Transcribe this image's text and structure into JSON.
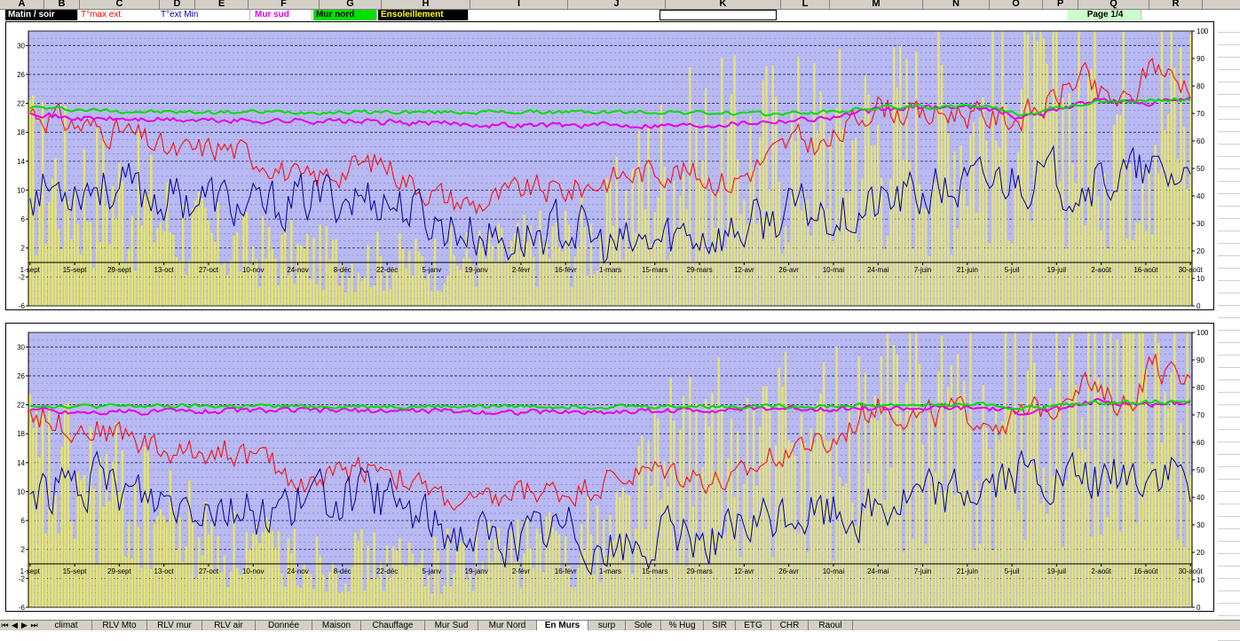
{
  "column_headers": [
    "A",
    "B",
    "C",
    "D",
    "E",
    "F",
    "G",
    "H",
    "I",
    "J",
    "K",
    "L",
    "M",
    "N",
    "O",
    "P",
    "Q",
    "R"
  ],
  "legend": [
    {
      "label": "Matin / soir",
      "color": "#ffffff",
      "bg": "#000000"
    },
    {
      "label": "T°max ext",
      "color": "#ff0000",
      "bg": "#ffffff"
    },
    {
      "label": "T°ext Min",
      "color": "#0000aa",
      "bg": "#ffffff"
    },
    {
      "label": "Mur sud",
      "color": "#e600e6",
      "bg": "#ffffff"
    },
    {
      "label": "Mur nord",
      "color": "#000000",
      "bg": "#00e000"
    },
    {
      "label": "Ensoleillement",
      "color": "#ffff00",
      "bg": "#000000"
    }
  ],
  "page_label": "Page  1/4",
  "sheet_tabs": [
    "climat",
    "RLV Mto",
    "RLV mur",
    "RLV air",
    "Donnée",
    "Maison",
    "Chauffage",
    "Mur Sud",
    "Mur Nord",
    "En Murs",
    "surp",
    "Sole",
    "% Hug",
    "SIR",
    "ETG",
    "CHR",
    "Raoul"
  ],
  "active_tab": "En Murs",
  "colors": {
    "plot_bg": "#b8b8f2",
    "sun": "#e4e46e",
    "tmax": "#ff0000",
    "tmin": "#000099",
    "mur_sud": "#e600e6",
    "mur_nord": "#00dd00"
  },
  "chart_data": [
    {
      "type": "line",
      "n_days": 365,
      "x_tick_labels": [
        "1-sept",
        "15-sept",
        "29-sept",
        "13-oct",
        "27-oct",
        "10-nov",
        "24-nov",
        "8-déc",
        "22-déc",
        "5-janv",
        "19-janv",
        "2-févr",
        "16-févr",
        "1-mars",
        "15-mars",
        "29-mars",
        "12-avr",
        "26-avr",
        "10-mai",
        "24-mai",
        "7-juin",
        "21-juin",
        "5-juil",
        "19-juil",
        "2-août",
        "16-août",
        "30-août"
      ],
      "y_left": {
        "min": -6,
        "max": 32,
        "ticks": [
          -6,
          -2,
          2,
          6,
          10,
          14,
          18,
          22,
          26,
          30
        ]
      },
      "y_right": {
        "min": 0,
        "max": 100,
        "ticks": [
          0,
          10,
          20,
          30,
          40,
          50,
          60,
          70,
          80,
          90,
          100
        ]
      },
      "grid": true,
      "series": [
        {
          "key": "sun",
          "axis": "right",
          "style": "bars",
          "keypoints": [
            [
              0,
              55
            ],
            [
              30,
              45
            ],
            [
              60,
              25
            ],
            [
              90,
              20
            ],
            [
              120,
              18
            ],
            [
              150,
              22
            ],
            [
              180,
              30
            ],
            [
              195,
              55
            ],
            [
              210,
              60
            ],
            [
              240,
              65
            ],
            [
              270,
              70
            ],
            [
              300,
              75
            ],
            [
              330,
              80
            ],
            [
              364,
              85
            ]
          ]
        },
        {
          "key": "tmax",
          "axis": "left",
          "style": "line",
          "keypoints": [
            [
              0,
              21
            ],
            [
              7,
              20
            ],
            [
              14,
              19
            ],
            [
              30,
              18
            ],
            [
              45,
              15
            ],
            [
              60,
              16
            ],
            [
              75,
              14
            ],
            [
              85,
              11
            ],
            [
              100,
              13
            ],
            [
              110,
              14
            ],
            [
              120,
              11
            ],
            [
              130,
              9
            ],
            [
              140,
              8
            ],
            [
              155,
              10
            ],
            [
              170,
              10
            ],
            [
              185,
              12
            ],
            [
              200,
              13
            ],
            [
              210,
              12
            ],
            [
              220,
              11
            ],
            [
              230,
              14
            ],
            [
              240,
              17
            ],
            [
              250,
              16
            ],
            [
              265,
              22
            ],
            [
              280,
              20
            ],
            [
              290,
              21
            ],
            [
              300,
              20
            ],
            [
              310,
              20
            ],
            [
              320,
              22
            ],
            [
              330,
              26
            ],
            [
              335,
              23
            ],
            [
              345,
              22
            ],
            [
              352,
              28
            ],
            [
              360,
              25
            ],
            [
              364,
              25
            ]
          ]
        },
        {
          "key": "tmin",
          "axis": "left",
          "style": "line",
          "keypoints": [
            [
              0,
              10
            ],
            [
              20,
              11
            ],
            [
              40,
              9
            ],
            [
              55,
              9
            ],
            [
              70,
              7
            ],
            [
              90,
              9
            ],
            [
              110,
              9
            ],
            [
              130,
              5
            ],
            [
              150,
              3
            ],
            [
              170,
              5
            ],
            [
              180,
              2
            ],
            [
              190,
              2
            ],
            [
              205,
              4
            ],
            [
              220,
              4
            ],
            [
              240,
              7
            ],
            [
              260,
              7
            ],
            [
              275,
              9
            ],
            [
              290,
              10
            ],
            [
              310,
              12
            ],
            [
              330,
              11
            ],
            [
              345,
              12
            ],
            [
              364,
              12
            ]
          ]
        },
        {
          "key": "mur_sud",
          "axis": "left",
          "style": "line",
          "keypoints": [
            [
              0,
              21
            ],
            [
              10,
              20
            ],
            [
              30,
              19.8
            ],
            [
              60,
              19.6
            ],
            [
              90,
              19.6
            ],
            [
              120,
              19.3
            ],
            [
              150,
              19
            ],
            [
              180,
              19
            ],
            [
              210,
              19
            ],
            [
              230,
              19.5
            ],
            [
              250,
              20
            ],
            [
              265,
              21
            ],
            [
              280,
              21.5
            ],
            [
              300,
              21.5
            ],
            [
              310,
              20
            ],
            [
              320,
              21
            ],
            [
              335,
              22.5
            ],
            [
              350,
              22
            ],
            [
              364,
              22.5
            ]
          ]
        },
        {
          "key": "mur_nord",
          "axis": "left",
          "style": "line",
          "keypoints": [
            [
              0,
              21.5
            ],
            [
              10,
              21.2
            ],
            [
              40,
              20.8
            ],
            [
              80,
              20.8
            ],
            [
              120,
              20.8
            ],
            [
              160,
              20.8
            ],
            [
              200,
              20.8
            ],
            [
              230,
              20.5
            ],
            [
              250,
              20.8
            ],
            [
              270,
              21.5
            ],
            [
              300,
              21.5
            ],
            [
              310,
              20.5
            ],
            [
              320,
              21.2
            ],
            [
              335,
              22.2
            ],
            [
              364,
              22.5
            ]
          ]
        }
      ]
    },
    {
      "type": "line",
      "n_days": 365,
      "x_tick_labels": [
        "1-sept",
        "15-sept",
        "29-sept",
        "13-oct",
        "27-oct",
        "10-nov",
        "24-nov",
        "8-déc",
        "22-déc",
        "5-janv",
        "19-janv",
        "2-févr",
        "16-févr",
        "1-mars",
        "15-mars",
        "29-mars",
        "12-avr",
        "26-avr",
        "10-mai",
        "24-mai",
        "7-juin",
        "21-juin",
        "5-juil",
        "19-juil",
        "2-août",
        "16-août",
        "30-août"
      ],
      "y_left": {
        "min": -6,
        "max": 32,
        "ticks": [
          -6,
          -2,
          2,
          6,
          10,
          14,
          18,
          22,
          26,
          30
        ]
      },
      "y_right": {
        "min": 0,
        "max": 100,
        "ticks": [
          0,
          10,
          20,
          30,
          40,
          50,
          60,
          70,
          80,
          90,
          100
        ]
      },
      "grid": true,
      "series": [
        {
          "key": "sun",
          "axis": "right",
          "style": "bars",
          "keypoints": [
            [
              0,
              55
            ],
            [
              30,
              45
            ],
            [
              60,
              25
            ],
            [
              90,
              20
            ],
            [
              120,
              18
            ],
            [
              150,
              22
            ],
            [
              180,
              30
            ],
            [
              195,
              55
            ],
            [
              210,
              60
            ],
            [
              240,
              65
            ],
            [
              270,
              70
            ],
            [
              300,
              75
            ],
            [
              330,
              80
            ],
            [
              364,
              85
            ]
          ]
        },
        {
          "key": "tmax",
          "axis": "left",
          "style": "line",
          "keypoints": [
            [
              0,
              21
            ],
            [
              7,
              20
            ],
            [
              14,
              19
            ],
            [
              30,
              18
            ],
            [
              45,
              15
            ],
            [
              60,
              16
            ],
            [
              75,
              14
            ],
            [
              85,
              11
            ],
            [
              100,
              13
            ],
            [
              110,
              14
            ],
            [
              120,
              11
            ],
            [
              130,
              9
            ],
            [
              140,
              8
            ],
            [
              155,
              10
            ],
            [
              170,
              10
            ],
            [
              185,
              12
            ],
            [
              200,
              13
            ],
            [
              210,
              12
            ],
            [
              220,
              11
            ],
            [
              230,
              14
            ],
            [
              240,
              17
            ],
            [
              250,
              16
            ],
            [
              265,
              22
            ],
            [
              280,
              20
            ],
            [
              290,
              21
            ],
            [
              300,
              20
            ],
            [
              310,
              20
            ],
            [
              320,
              22
            ],
            [
              330,
              26
            ],
            [
              335,
              23
            ],
            [
              345,
              22
            ],
            [
              352,
              28
            ],
            [
              360,
              25
            ],
            [
              364,
              25
            ]
          ]
        },
        {
          "key": "tmin",
          "axis": "left",
          "style": "line",
          "keypoints": [
            [
              0,
              10
            ],
            [
              20,
              11
            ],
            [
              40,
              9
            ],
            [
              55,
              9
            ],
            [
              70,
              7
            ],
            [
              90,
              9
            ],
            [
              110,
              9
            ],
            [
              130,
              5
            ],
            [
              150,
              3
            ],
            [
              170,
              5
            ],
            [
              180,
              2
            ],
            [
              190,
              2
            ],
            [
              205,
              4
            ],
            [
              220,
              4
            ],
            [
              240,
              7
            ],
            [
              260,
              7
            ],
            [
              275,
              9
            ],
            [
              290,
              10
            ],
            [
              310,
              12
            ],
            [
              330,
              11
            ],
            [
              345,
              12
            ],
            [
              364,
              12
            ]
          ]
        },
        {
          "key": "mur_sud",
          "axis": "left",
          "style": "line",
          "keypoints": [
            [
              0,
              21.5
            ],
            [
              10,
              21
            ],
            [
              30,
              21
            ],
            [
              60,
              21.2
            ],
            [
              90,
              21.2
            ],
            [
              120,
              21.2
            ],
            [
              150,
              21
            ],
            [
              180,
              21
            ],
            [
              210,
              21.3
            ],
            [
              230,
              21.5
            ],
            [
              250,
              21.5
            ],
            [
              265,
              21.5
            ],
            [
              280,
              21.5
            ],
            [
              300,
              21.5
            ],
            [
              310,
              21
            ],
            [
              320,
              21.2
            ],
            [
              335,
              22.5
            ],
            [
              350,
              22
            ],
            [
              364,
              22.5
            ]
          ]
        },
        {
          "key": "mur_nord",
          "axis": "left",
          "style": "line",
          "keypoints": [
            [
              0,
              22
            ],
            [
              10,
              21.8
            ],
            [
              40,
              21.8
            ],
            [
              80,
              21.8
            ],
            [
              120,
              21.8
            ],
            [
              160,
              21.8
            ],
            [
              200,
              21.8
            ],
            [
              230,
              21.8
            ],
            [
              250,
              21.8
            ],
            [
              270,
              22
            ],
            [
              300,
              22
            ],
            [
              310,
              21.5
            ],
            [
              320,
              21.8
            ],
            [
              335,
              22.3
            ],
            [
              364,
              22.5
            ]
          ]
        }
      ]
    }
  ]
}
